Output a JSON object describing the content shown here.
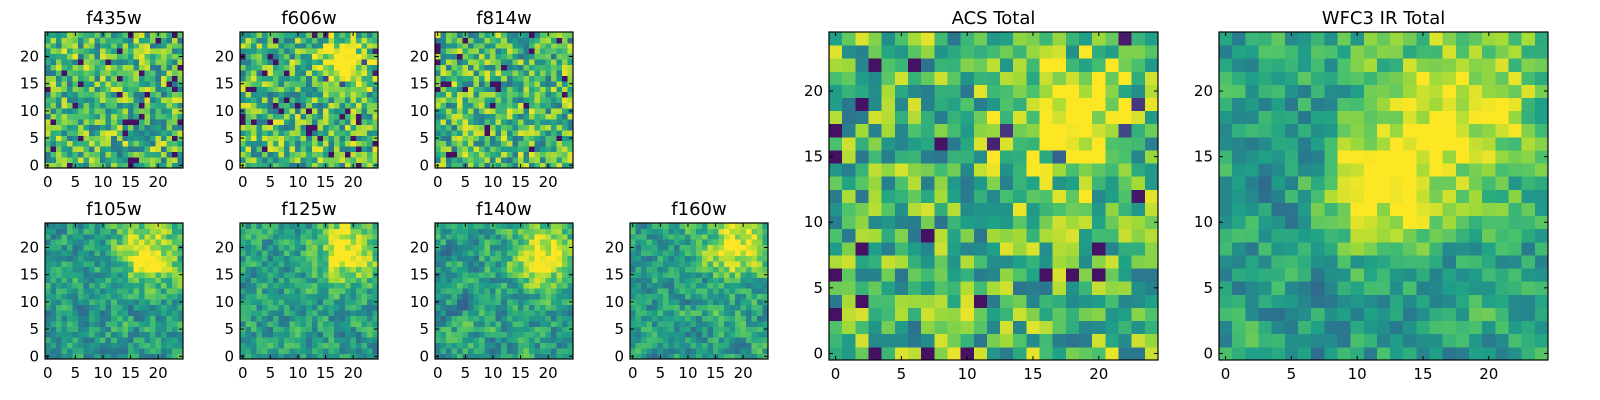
{
  "figure": {
    "panels": [
      "f435w",
      "f606w",
      "f814w",
      "f105w",
      "f125w",
      "f140w",
      "f160w",
      "ACS Total",
      "WFC3 IR Total"
    ]
  },
  "colormap": {
    "name": "viridis",
    "stops": [
      "#440154",
      "#46327e",
      "#365c8d",
      "#277f8e",
      "#1fa187",
      "#4ac16d",
      "#a0da39",
      "#fde725"
    ]
  },
  "chart_data": [
    {
      "type": "heatmap",
      "title": "f435w",
      "grid": [
        25,
        25
      ],
      "xlim": [
        0,
        25
      ],
      "ylim": [
        0,
        25
      ],
      "xticks": [
        0,
        5,
        10,
        15,
        20
      ],
      "yticks": [
        0,
        5,
        10,
        15,
        20
      ],
      "value_range": [
        0,
        1
      ],
      "hotspots": []
    },
    {
      "type": "heatmap",
      "title": "f606w",
      "grid": [
        25,
        25
      ],
      "xlim": [
        0,
        25
      ],
      "ylim": [
        0,
        25
      ],
      "xticks": [
        0,
        5,
        10,
        15,
        20
      ],
      "yticks": [
        0,
        5,
        10,
        15,
        20
      ],
      "value_range": [
        0,
        1
      ],
      "hotspots": [
        {
          "x": 18,
          "y": 19,
          "r": 3
        }
      ]
    },
    {
      "type": "heatmap",
      "title": "f814w",
      "grid": [
        25,
        25
      ],
      "xlim": [
        0,
        25
      ],
      "ylim": [
        0,
        25
      ],
      "xticks": [
        0,
        5,
        10,
        15,
        20
      ],
      "yticks": [
        0,
        5,
        10,
        15,
        20
      ],
      "value_range": [
        0,
        1
      ],
      "hotspots": []
    },
    {
      "type": "heatmap",
      "title": "f105w",
      "grid": [
        25,
        25
      ],
      "xlim": [
        0,
        25
      ],
      "ylim": [
        0,
        25
      ],
      "xticks": [
        0,
        5,
        10,
        15,
        20
      ],
      "yticks": [
        0,
        5,
        10,
        15,
        20
      ],
      "value_range": [
        0,
        1
      ],
      "hotspots": [
        {
          "x": 18,
          "y": 19,
          "r": 4
        }
      ]
    },
    {
      "type": "heatmap",
      "title": "f125w",
      "grid": [
        25,
        25
      ],
      "xlim": [
        0,
        25
      ],
      "ylim": [
        0,
        25
      ],
      "xticks": [
        0,
        5,
        10,
        15,
        20
      ],
      "yticks": [
        0,
        5,
        10,
        15,
        20
      ],
      "value_range": [
        0,
        1
      ],
      "hotspots": [
        {
          "x": 19,
          "y": 19,
          "r": 4
        }
      ]
    },
    {
      "type": "heatmap",
      "title": "f140w",
      "grid": [
        25,
        25
      ],
      "xlim": [
        0,
        25
      ],
      "ylim": [
        0,
        25
      ],
      "xticks": [
        0,
        5,
        10,
        15,
        20
      ],
      "yticks": [
        0,
        5,
        10,
        15,
        20
      ],
      "value_range": [
        0,
        1
      ],
      "hotspots": [
        {
          "x": 19,
          "y": 19,
          "r": 4
        }
      ]
    },
    {
      "type": "heatmap",
      "title": "f160w",
      "grid": [
        25,
        25
      ],
      "xlim": [
        0,
        25
      ],
      "ylim": [
        0,
        25
      ],
      "xticks": [
        0,
        5,
        10,
        15,
        20
      ],
      "yticks": [
        0,
        5,
        10,
        15,
        20
      ],
      "value_range": [
        0,
        1
      ],
      "hotspots": [
        {
          "x": 19,
          "y": 20,
          "r": 4
        }
      ]
    },
    {
      "type": "heatmap",
      "title": "ACS Total",
      "grid": [
        25,
        25
      ],
      "xlim": [
        0,
        25
      ],
      "ylim": [
        0,
        25
      ],
      "xticks": [
        0,
        5,
        10,
        15,
        20
      ],
      "yticks": [
        0,
        5,
        10,
        15,
        20
      ],
      "value_range": [
        0,
        1
      ],
      "hotspots": [
        {
          "x": 18,
          "y": 18,
          "r": 3
        }
      ]
    },
    {
      "type": "heatmap",
      "title": "WFC3 IR Total",
      "grid": [
        25,
        25
      ],
      "xlim": [
        0,
        25
      ],
      "ylim": [
        0,
        25
      ],
      "xticks": [
        0,
        5,
        10,
        15,
        20
      ],
      "yticks": [
        0,
        5,
        10,
        15,
        20
      ],
      "value_range": [
        0,
        1
      ],
      "hotspots": [
        {
          "x": 18,
          "y": 19,
          "r": 5
        },
        {
          "x": 12,
          "y": 13,
          "r": 3
        }
      ]
    }
  ]
}
